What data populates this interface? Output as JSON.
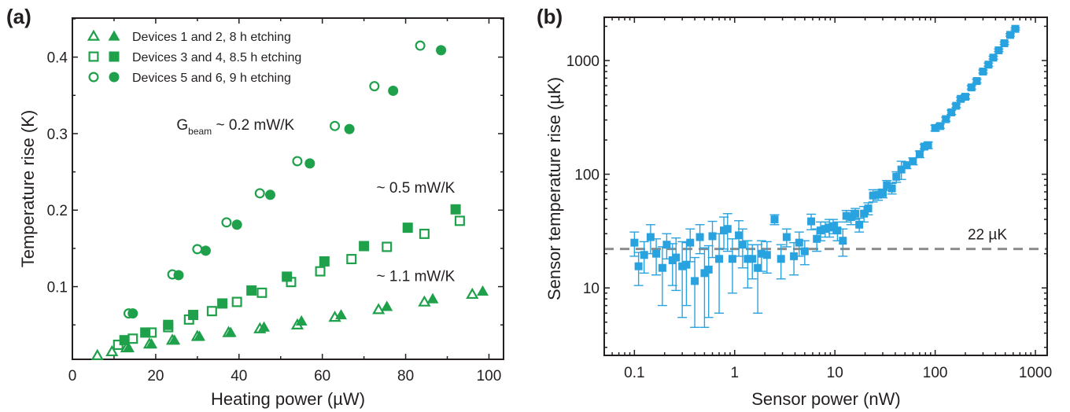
{
  "chart_data": [
    {
      "panel_label": "(a)",
      "type": "scatter",
      "xlabel": "Heating power (µW)",
      "ylabel": "Temperature rise (K)",
      "xlim": [
        0,
        103.5
      ],
      "ylim": [
        0.005,
        0.451
      ],
      "xticks": [
        0,
        20,
        40,
        60,
        80,
        100
      ],
      "xtick_labels": [
        "0",
        "20",
        "40",
        "60",
        "80",
        "100"
      ],
      "yticks": [
        0.1,
        0.2,
        0.3,
        0.4
      ],
      "ytick_labels": [
        "0.1",
        "0.2",
        "0.3",
        "0.4"
      ],
      "grid": false,
      "color": "#1fa04a",
      "legend": {
        "placement": "top-left",
        "entries": [
          {
            "label": "Devices 1 and 2, 8 h etching",
            "marker": "triangle"
          },
          {
            "label": "Devices 3 and 4, 8.5 h etching",
            "marker": "square"
          },
          {
            "label": "Devices 5 and 6, 9 h etching",
            "marker": "circle"
          }
        ]
      },
      "annotations": [
        {
          "text": "G",
          "sub": "beam",
          "rest": " ~ 0.2 mW/K",
          "x": 25,
          "y": 0.305
        },
        {
          "text": "~ 0.5 mW/K",
          "x": 73,
          "y": 0.223
        },
        {
          "text": "~ 1.1 mW/K",
          "x": 73,
          "y": 0.107
        }
      ],
      "series": [
        {
          "name": "Device 1",
          "marker": "triangle",
          "filled": false,
          "x": [
            6,
            9.5,
            13,
            18.5,
            24,
            30,
            37.5,
            45,
            54,
            63,
            73.5,
            84.5,
            96
          ],
          "y": [
            0.01,
            0.015,
            0.02,
            0.025,
            0.03,
            0.035,
            0.04,
            0.045,
            0.05,
            0.06,
            0.07,
            0.08,
            0.09
          ]
        },
        {
          "name": "Device 2",
          "marker": "triangle",
          "filled": true,
          "x": [
            13.5,
            19,
            24.5,
            30.5,
            38,
            46,
            55,
            64.5,
            75.5,
            86.5,
            98.5
          ],
          "y": [
            0.02,
            0.025,
            0.03,
            0.035,
            0.04,
            0.047,
            0.055,
            0.063,
            0.074,
            0.084,
            0.094
          ]
        },
        {
          "name": "Device 3",
          "marker": "square",
          "filled": false,
          "x": [
            11,
            14.5,
            19,
            23,
            28,
            33.5,
            39.5,
            45.5,
            52.5,
            59.5,
            67,
            75.5,
            84.5,
            93
          ],
          "y": [
            0.024,
            0.032,
            0.04,
            0.047,
            0.057,
            0.068,
            0.08,
            0.092,
            0.106,
            0.12,
            0.136,
            0.152,
            0.169,
            0.186
          ]
        },
        {
          "name": "Device 4",
          "marker": "square",
          "filled": true,
          "x": [
            12.5,
            17.5,
            23,
            29,
            36,
            43,
            51.5,
            60.5,
            70,
            80.5,
            92
          ],
          "y": [
            0.03,
            0.04,
            0.05,
            0.063,
            0.078,
            0.095,
            0.113,
            0.133,
            0.153,
            0.177,
            0.201
          ]
        },
        {
          "name": "Device 5",
          "marker": "circle",
          "filled": false,
          "x": [
            13.5,
            24,
            30,
            37,
            45,
            54,
            63,
            72.5,
            83.5
          ],
          "y": [
            0.065,
            0.116,
            0.149,
            0.184,
            0.222,
            0.264,
            0.31,
            0.362,
            0.415
          ]
        },
        {
          "name": "Device 6",
          "marker": "circle",
          "filled": true,
          "x": [
            14.5,
            25.5,
            32,
            39.5,
            47.5,
            57,
            66.5,
            77,
            88.5
          ],
          "y": [
            0.065,
            0.115,
            0.147,
            0.181,
            0.22,
            0.261,
            0.306,
            0.356,
            0.409
          ]
        }
      ]
    },
    {
      "panel_label": "(b)",
      "type": "scatter",
      "xscale": "log",
      "yscale": "log",
      "xlabel": "Sensor power (nW)",
      "ylabel": "Sensor temperature rise (µK)",
      "xlim": [
        0.05,
        1310
      ],
      "ylim": [
        2.55,
        2400
      ],
      "xticks": [
        0.1,
        1,
        10,
        100,
        1000
      ],
      "xtick_labels": [
        "0.1",
        "1",
        "10",
        "100",
        "1000"
      ],
      "yticks": [
        10,
        100,
        1000
      ],
      "ytick_labels": [
        "10",
        "100",
        "1000"
      ],
      "grid": false,
      "color": "#29a3df",
      "reference_line": {
        "y": 22,
        "label": "22 µK",
        "style": "dashed",
        "color": "#8c8c8c"
      },
      "series": [
        {
          "name": "Sensor",
          "marker": "square",
          "filled": true,
          "x": [
            0.1,
            0.11,
            0.125,
            0.145,
            0.165,
            0.19,
            0.21,
            0.24,
            0.26,
            0.3,
            0.33,
            0.36,
            0.4,
            0.45,
            0.5,
            0.55,
            0.6,
            0.7,
            0.78,
            0.85,
            0.95,
            1.1,
            1.2,
            1.35,
            1.5,
            1.7,
            1.85,
            2.1,
            2.5,
            2.9,
            3.3,
            3.9,
            4.4,
            5.0,
            5.8,
            6.6,
            7.2,
            8.0,
            8.8,
            9.6,
            10.6,
            12.0,
            13.0,
            14.5,
            16.0,
            17.5,
            19.5,
            21.5,
            24,
            27,
            30,
            33,
            37,
            41,
            46,
            52,
            60,
            70,
            78,
            85,
            100,
            112,
            128,
            145,
            162,
            180,
            200,
            230,
            260,
            300,
            340,
            380,
            430,
            490,
            560,
            630
          ],
          "y": [
            25,
            15.5,
            19.5,
            28,
            20,
            15,
            24,
            17.5,
            18.5,
            15.5,
            16,
            25,
            11.5,
            28,
            13.5,
            14.5,
            28.5,
            18,
            32,
            33,
            18,
            29,
            24,
            18,
            18,
            15,
            20,
            19.5,
            40,
            18,
            28,
            19,
            25,
            21,
            38.5,
            27,
            32,
            33,
            34,
            35,
            32,
            26,
            43,
            42,
            45,
            36,
            45,
            50,
            65,
            66,
            68,
            80,
            75,
            95,
            110,
            120,
            130,
            150,
            175,
            180,
            255,
            265,
            305,
            350,
            400,
            460,
            480,
            580,
            660,
            800,
            920,
            1060,
            1230,
            1420,
            1680,
            1900
          ],
          "err": [
            6,
            5,
            6,
            8,
            7,
            8,
            6,
            7,
            9,
            10,
            9,
            8,
            7,
            8,
            9,
            9,
            10,
            12,
            10,
            12,
            9,
            10,
            9,
            8,
            6,
            9,
            6,
            6,
            4,
            6,
            5,
            6,
            6,
            5,
            6,
            6,
            6,
            5,
            6,
            5,
            6,
            7,
            5,
            6,
            5,
            5,
            7,
            6,
            8,
            7,
            6,
            8,
            8,
            10,
            20,
            8,
            9,
            10,
            8,
            12,
            15,
            12,
            12,
            15,
            14,
            15,
            20,
            20,
            25,
            25,
            30,
            30,
            30,
            35,
            40,
            40
          ]
        }
      ]
    }
  ]
}
